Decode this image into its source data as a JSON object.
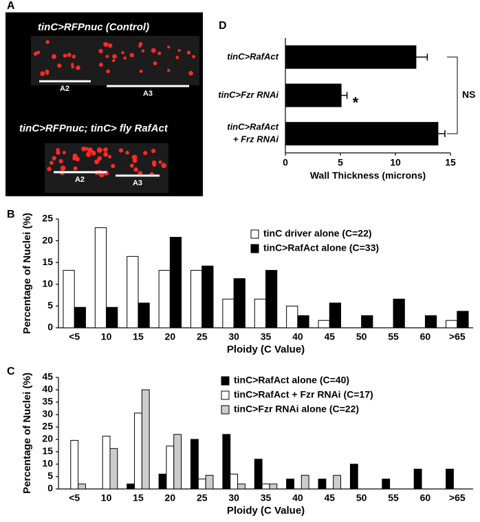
{
  "panel_a": {
    "label": "A",
    "top_title": "tinC>RFPnuc (Control)",
    "bottom_title": "tinC>RFPnuc; tinC> fly RafAct",
    "segments": [
      "A2",
      "A3",
      "A2",
      "A3"
    ]
  },
  "chart_data": [
    {
      "type": "bar",
      "panel": "B",
      "xlabel": "Ploidy (C Value)",
      "ylabel": "Percentage of Nuclei (%)",
      "categories": [
        "<5",
        "10",
        "15",
        "20",
        "25",
        "30",
        "35",
        "40",
        "45",
        "50",
        "55",
        "60",
        ">65"
      ],
      "series": [
        {
          "name": "tinC driver alone (C=22)",
          "color": "#ffffff",
          "values": [
            13.2,
            23,
            16.4,
            13.2,
            13.2,
            6.6,
            6.6,
            5,
            1.7,
            0,
            0,
            0,
            1.7
          ]
        },
        {
          "name": "tinC>RafAct alone (C=33)",
          "color": "#000000",
          "values": [
            4.7,
            4.7,
            5.7,
            20.8,
            14.2,
            11.3,
            13.2,
            2.8,
            5.7,
            2.8,
            6.6,
            2.8,
            3.8
          ]
        }
      ],
      "ylim": [
        0,
        25
      ],
      "yticks": [
        0,
        5,
        10,
        15,
        20,
        25
      ],
      "legend": "upper right"
    },
    {
      "type": "bar",
      "panel": "C",
      "xlabel": "Ploidy (C Value)",
      "ylabel": "Percentage of Nuclei (%)",
      "categories": [
        "<5",
        "10",
        "15",
        "20",
        "25",
        "30",
        "35",
        "40",
        "45",
        "50",
        "55",
        "60",
        ">65"
      ],
      "series": [
        {
          "name": "tinC>RafAct alone (C=40)",
          "color": "#000000",
          "values": [
            0,
            0,
            2,
            6,
            20,
            22,
            12,
            4,
            4,
            10,
            4,
            8,
            8
          ]
        },
        {
          "name": "tinC>RafAct + Fzr RNAi (C=17)",
          "color": "#ffffff",
          "values": [
            19.6,
            21.3,
            30.6,
            17.3,
            4,
            6,
            2,
            0,
            0,
            0,
            0,
            0,
            0
          ]
        },
        {
          "name": "tinC>Fzr RNAi alone (C=22)",
          "color": "#cccccc",
          "values": [
            2,
            16.3,
            40,
            22,
            5.5,
            2,
            2,
            5.5,
            5.5,
            0,
            0,
            0,
            0
          ]
        }
      ],
      "ylim": [
        0,
        45
      ],
      "yticks": [
        0,
        5,
        10,
        15,
        20,
        25,
        30,
        35,
        40,
        45
      ],
      "legend": "upper right"
    },
    {
      "type": "barh",
      "panel": "D",
      "xlabel": "Wall Thickness (microns)",
      "categories": [
        [
          "tinC>RafAct"
        ],
        [
          "tinC>Fzr RNAi"
        ],
        [
          "tinC>RafAct",
          "+ Frz RNAi"
        ]
      ],
      "values": [
        11.9,
        5.1,
        13.9
      ],
      "errors": [
        1,
        0.5,
        0.6
      ],
      "color": "#000000",
      "xlim": [
        0,
        15
      ],
      "xticks": [
        0,
        5,
        10,
        15
      ],
      "annotations": [
        "*",
        "NS"
      ]
    }
  ]
}
